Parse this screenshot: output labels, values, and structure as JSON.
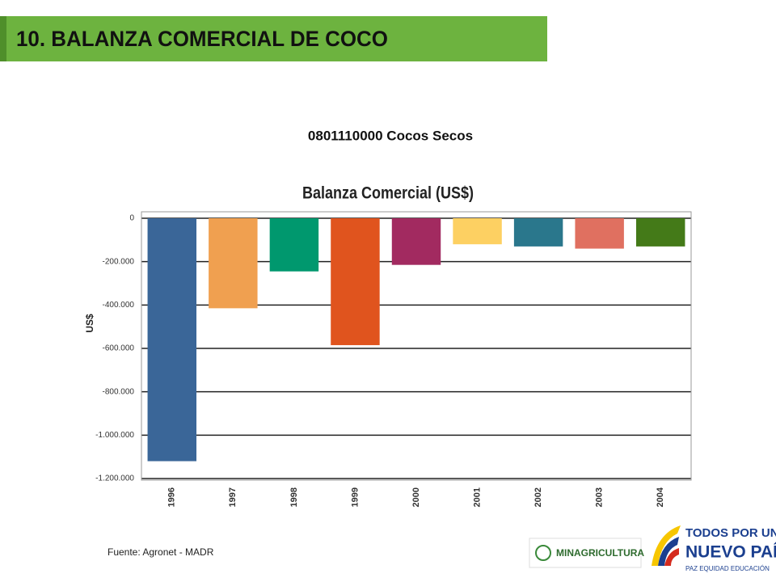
{
  "header": {
    "title": "10. BALANZA COMERCIAL DE COCO"
  },
  "subtitle": "0801110000 Cocos Secos",
  "chart_data": {
    "type": "bar",
    "title": "Balanza Comercial (US$)",
    "y_label": "US$",
    "categories": [
      "1996",
      "1997",
      "1998",
      "1999",
      "2000",
      "2001",
      "2002",
      "2003",
      "2004"
    ],
    "values": [
      -1120000,
      -415000,
      -245000,
      -585000,
      -215000,
      -120000,
      -130000,
      -140000,
      -130000
    ],
    "colors": [
      "#3a6698",
      "#f0a050",
      "#00986e",
      "#e0541e",
      "#a22a60",
      "#fdd062",
      "#2a778c",
      "#e07060",
      "#447a18"
    ],
    "ylim": [
      -1200000,
      0
    ],
    "yticks": [
      0,
      {
        "value": -200000,
        "label": "-200.000"
      },
      {
        "value": -400000,
        "label": "-400.000"
      },
      {
        "value": -600000,
        "label": "-600.000"
      },
      {
        "value": -800000,
        "label": "-800.000"
      },
      {
        "value": -1000000,
        "label": "-1.000.000"
      },
      {
        "value": -1200000,
        "label": "-1.200.000"
      }
    ],
    "grid": true
  },
  "footer": {
    "source": "Fuente: Agronet - MADR",
    "logo1": "MINAGRICULTURA",
    "logo2_line1": "TODOS POR UN",
    "logo2_line2": "NUEVO PAÍS",
    "logo2_line3": "PAZ  EQUIDAD  EDUCACIÓN"
  }
}
